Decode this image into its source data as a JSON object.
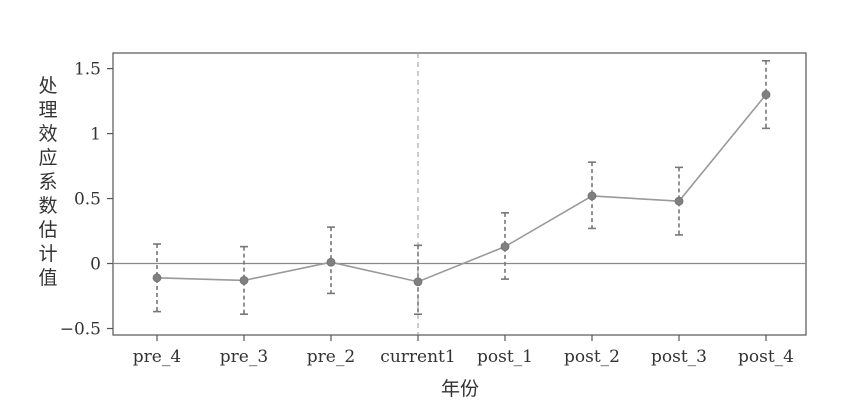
{
  "chart_data": {
    "type": "line",
    "title": "",
    "xlabel": "年份",
    "ylabel": "处理效应系数估计值",
    "categories": [
      "pre_4",
      "pre_3",
      "pre_2",
      "current1",
      "post_1",
      "post_2",
      "post_3",
      "post_4"
    ],
    "series": [
      {
        "values": [
          -0.11,
          -0.13,
          0.01,
          -0.14,
          0.13,
          0.52,
          0.48,
          1.3
        ],
        "ci_lower": [
          -0.37,
          -0.39,
          -0.23,
          -0.39,
          -0.12,
          0.27,
          0.22,
          1.04
        ],
        "ci_upper": [
          0.15,
          0.13,
          0.28,
          0.14,
          0.39,
          0.78,
          0.74,
          1.56
        ]
      }
    ],
    "yticks": [
      -0.5,
      0,
      0.5,
      1,
      1.5
    ],
    "ytick_labels": [
      "−0.5",
      "0",
      "0.5",
      "1",
      "1.5"
    ],
    "ylim": [
      -0.55,
      1.62
    ],
    "reference_line_y": 0,
    "reference_line_x": "current1",
    "grid": false,
    "colors": {
      "line": "#999999",
      "marker": "#808080",
      "error_bar": "#777777",
      "axis": "#555555",
      "zero_line": "#888888",
      "vline": "#999999"
    }
  }
}
